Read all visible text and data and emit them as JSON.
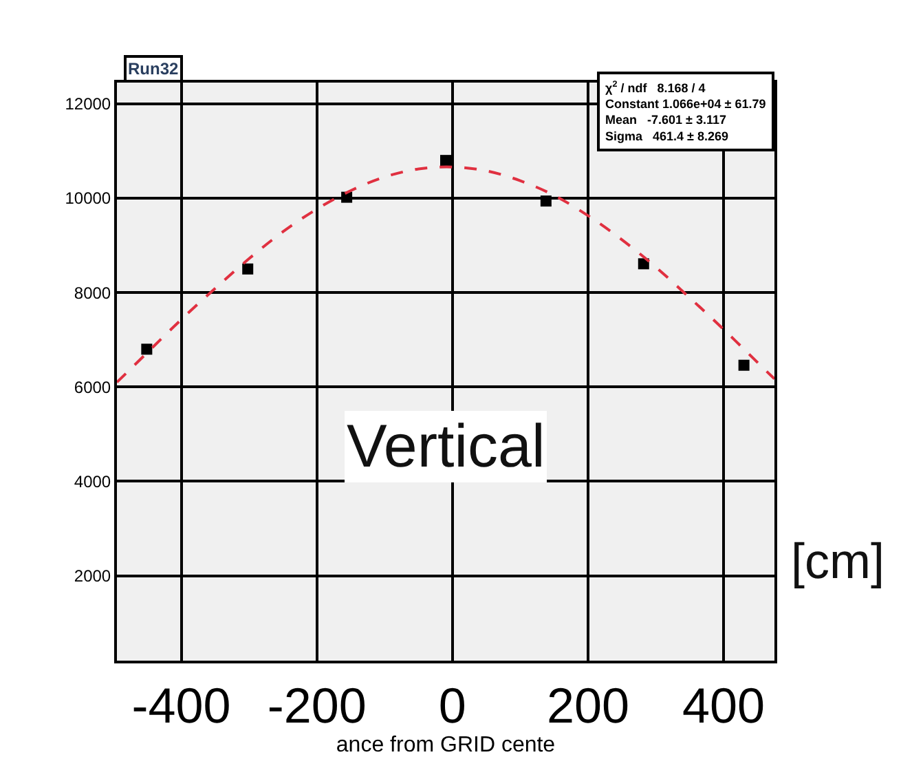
{
  "chart_data": {
    "type": "scatter",
    "xlabel": "ance from GRID cente",
    "x": [
      -451,
      -302,
      -156,
      -10,
      138,
      282,
      430
    ],
    "series": [
      {
        "color": "#000000",
        "values": [
          6800,
          8500,
          10020,
          10800,
          9940,
          8610,
          6460
        ],
        "marker": "square"
      },
      {
        "type": "line",
        "color": "#e03040",
        "line_style": "dashed",
        "marker": "none",
        "x": [
          -495,
          -450,
          -400,
          -350,
          -300,
          -250,
          -200,
          -150,
          -100,
          -50,
          0,
          50,
          100,
          150,
          200,
          250,
          300,
          350,
          400,
          450,
          475
        ],
        "values": [
          6100,
          6730,
          7430,
          8090,
          8720,
          9290,
          9770,
          10160,
          10450,
          10620,
          10660,
          10580,
          10370,
          10060,
          9630,
          9120,
          8540,
          7890,
          7220,
          6520,
          6170
        ]
      }
    ],
    "xlim": [
      -495,
      475
    ],
    "ylim": [
      200,
      12450
    ],
    "xticks": [
      -400,
      -200,
      0,
      200,
      400
    ],
    "yticks": [
      2000,
      4000,
      6000,
      8000,
      10000,
      12000
    ],
    "grid": true,
    "annotations": [
      "Run32",
      "χ$^{2}$ / ndf   8.168 / 4",
      "Constant 1.066e+04 ± 61.79",
      "Mean   -7.601 ± 3.117",
      "Sigma   461.4 ± 8.269",
      "Vertical",
      "[cm]"
    ]
  }
}
